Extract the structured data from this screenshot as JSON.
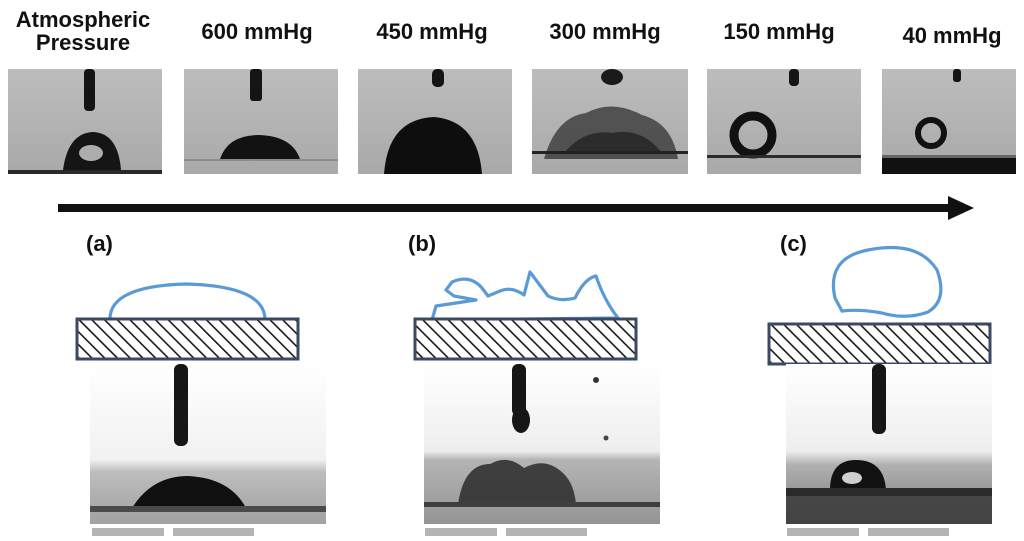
{
  "pressure_sequence": {
    "frames": [
      {
        "label": "Atmospheric\nPressure",
        "state": "sessile-drop"
      },
      {
        "label": "600 mmHg",
        "state": "flattened-drop"
      },
      {
        "label": "450 mmHg",
        "state": "dome-drop"
      },
      {
        "label": "300 mmHg",
        "state": "splash"
      },
      {
        "label": "150 mmHg",
        "state": "bouncing-ring"
      },
      {
        "label": "40 mmHg",
        "state": "small-ring"
      }
    ],
    "arrow_icon": "right-arrow-icon"
  },
  "panels": [
    {
      "letter": "(a)",
      "outcome": "deposition"
    },
    {
      "letter": "(b)",
      "outcome": "splash"
    },
    {
      "letter": "(c)",
      "outcome": "rebound"
    }
  ],
  "colors": {
    "outline_blue": "#5b9bd5",
    "substrate_border": "#3a4a63",
    "frame_gray": "#b9b9b9",
    "drop_dark": "#111111",
    "text": "#111111"
  }
}
